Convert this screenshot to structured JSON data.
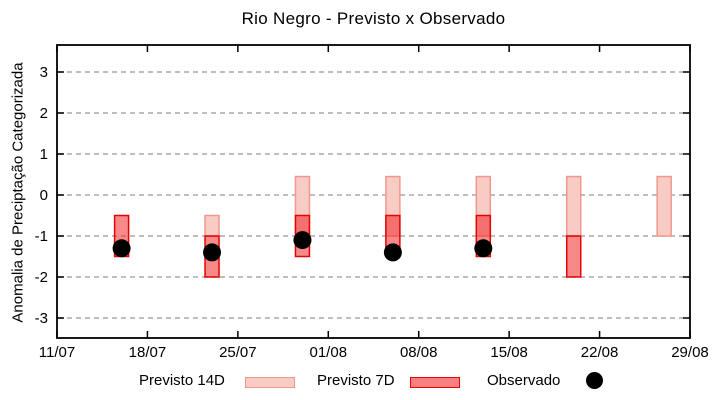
{
  "title": "Rio Negro - Previsto x Observado",
  "chart_data": {
    "type": "bar",
    "subtype": "range-bars-with-points",
    "title": "Rio Negro - Previsto x Observado",
    "xlabel": "",
    "ylabel": "Anomalia de Preciptação Categorizada",
    "ylim": [
      -3.5,
      3.65
    ],
    "yticks": [
      3,
      2,
      1,
      0,
      -1,
      -2,
      -3
    ],
    "grid": true,
    "x_axis": {
      "tick_labels": [
        "11/07",
        "18/07",
        "25/07",
        "01/08",
        "08/08",
        "15/08",
        "22/08",
        "29/08"
      ],
      "tick_day_offsets": [
        0,
        7,
        14,
        21,
        28,
        35,
        42,
        49
      ],
      "total_days": 49
    },
    "legend_position": "bottom",
    "series": [
      {
        "name": "Previsto 14D",
        "type": "range"
      },
      {
        "name": "Previsto 7D",
        "type": "range"
      },
      {
        "name": "Observado",
        "type": "point"
      }
    ],
    "bars": [
      {
        "date": "16/07",
        "day_offset": 5,
        "previsto14": null,
        "previsto7": [
          -1.5,
          -0.5
        ],
        "observado": -1.3
      },
      {
        "date": "23/07",
        "day_offset": 12,
        "previsto14": [
          -1.0,
          -0.5
        ],
        "previsto7": [
          -2.0,
          -1.0
        ],
        "observado": -1.4
      },
      {
        "date": "30/07",
        "day_offset": 19,
        "previsto14": [
          -1.0,
          0.45
        ],
        "previsto7": [
          -1.5,
          -0.5
        ],
        "observado": -1.1
      },
      {
        "date": "06/08",
        "day_offset": 26,
        "previsto14": [
          -1.0,
          0.45
        ],
        "previsto7": [
          -1.5,
          -0.5
        ],
        "observado": -1.4
      },
      {
        "date": "13/08",
        "day_offset": 33,
        "previsto14": [
          -1.0,
          0.45
        ],
        "previsto7": [
          -1.5,
          -0.5
        ],
        "observado": -1.3
      },
      {
        "date": "20/08",
        "day_offset": 40,
        "previsto14": [
          -1.0,
          0.45
        ],
        "previsto7": [
          -2.0,
          -1.0
        ],
        "observado": null
      },
      {
        "date": "27/08",
        "day_offset": 47,
        "previsto14": [
          -1.0,
          0.45
        ],
        "previsto7": null,
        "observado": null
      }
    ]
  },
  "legend": {
    "items": [
      {
        "label": "Previsto 14D",
        "swatch": "previsto14"
      },
      {
        "label": "Previsto 7D",
        "swatch": "previsto7"
      },
      {
        "label": "Observado",
        "swatch": "dot"
      }
    ]
  },
  "colors": {
    "previsto14_fill": "#f9cbc5",
    "previsto14_stroke": "#ef998e",
    "previsto7_fill": "rgba(240,40,40,0.55)",
    "previsto7_fill_legend": "#f88080",
    "previsto7_stroke": "#e30505",
    "observado": "#000000",
    "grid": "#a9a9a9",
    "frame": "#000000",
    "background": "#ffffff",
    "text": "#000000"
  }
}
